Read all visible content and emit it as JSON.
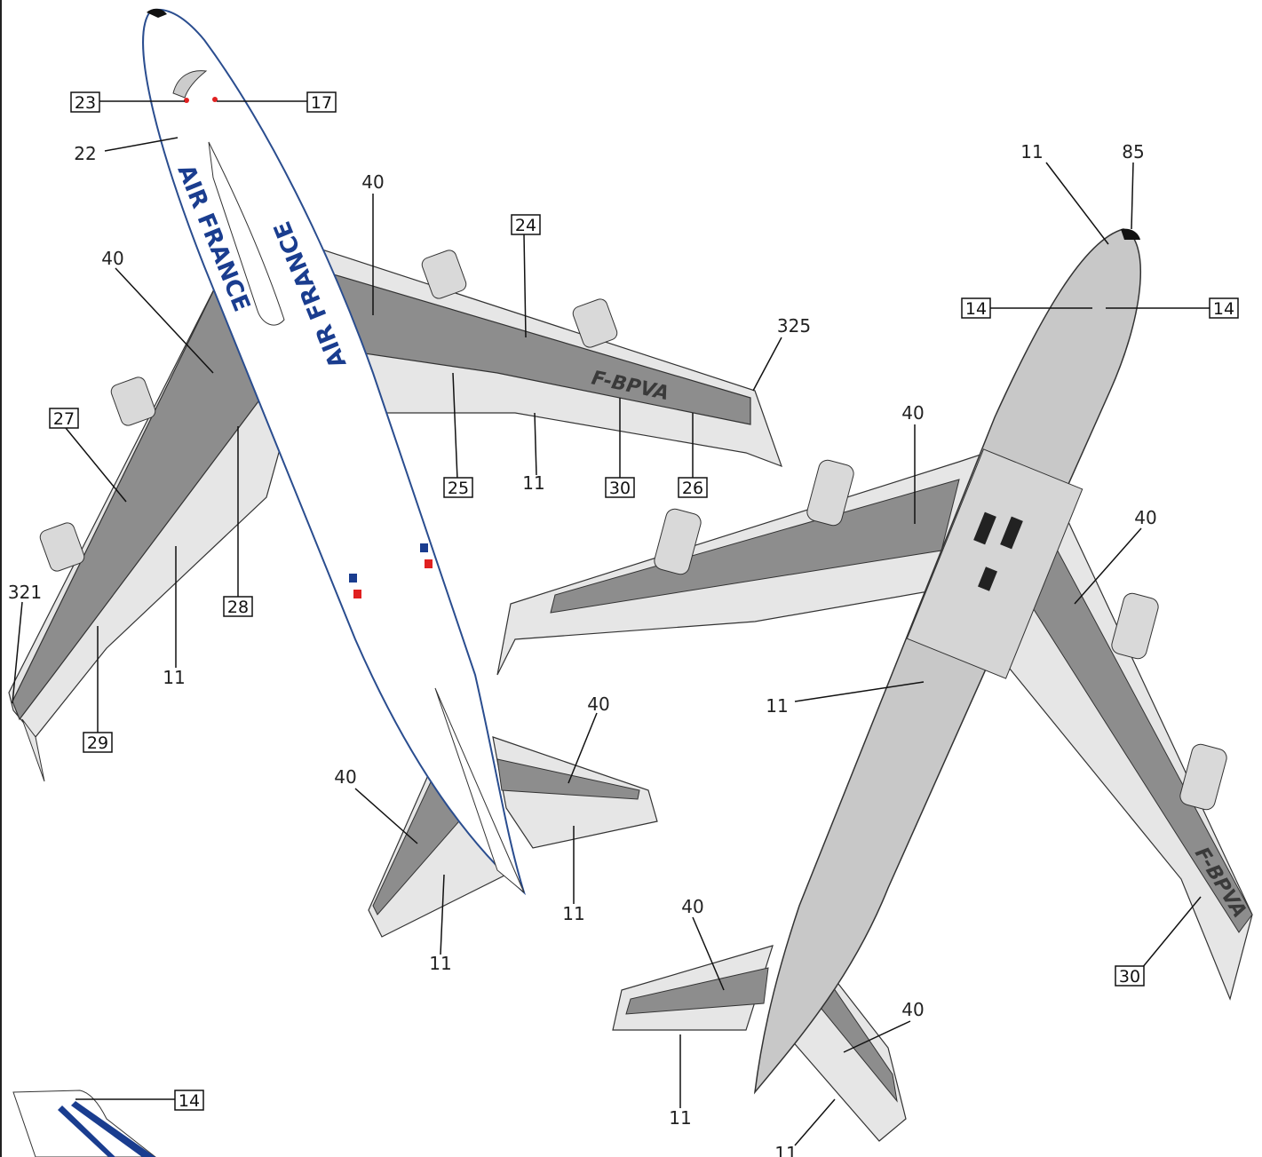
{
  "registration": "F-BPVA",
  "livery_text": [
    "AIR FRANCE",
    "AIR FRANCE"
  ],
  "colors": {
    "wing_gray": "#8d8d8d",
    "panel_light": "#e6e6e6",
    "fuselage_white": "#ffffff",
    "fuselage_gray": "#c8c8c8",
    "livery_blue": "#1a3d8f",
    "flag_red": "#e02020"
  },
  "callouts": {
    "c23": "23",
    "c17": "17",
    "c22": "22",
    "c40a": "40",
    "c40b": "40",
    "c24": "24",
    "c325": "325",
    "c27": "27",
    "c25": "25",
    "c11a": "11",
    "c30a": "30",
    "c26": "26",
    "c28": "28",
    "c321": "321",
    "c11b": "11",
    "c29": "29",
    "c40c": "40",
    "c40d": "40",
    "c11c": "11",
    "c11d": "11",
    "c11e": "11",
    "c85": "85",
    "c14a": "14",
    "c14b": "14",
    "c40e": "40",
    "c40f": "40",
    "c11f": "11",
    "c40g": "40",
    "c40h": "40",
    "c30b": "30",
    "c11g": "11",
    "c11h": "11",
    "c14c": "14"
  }
}
